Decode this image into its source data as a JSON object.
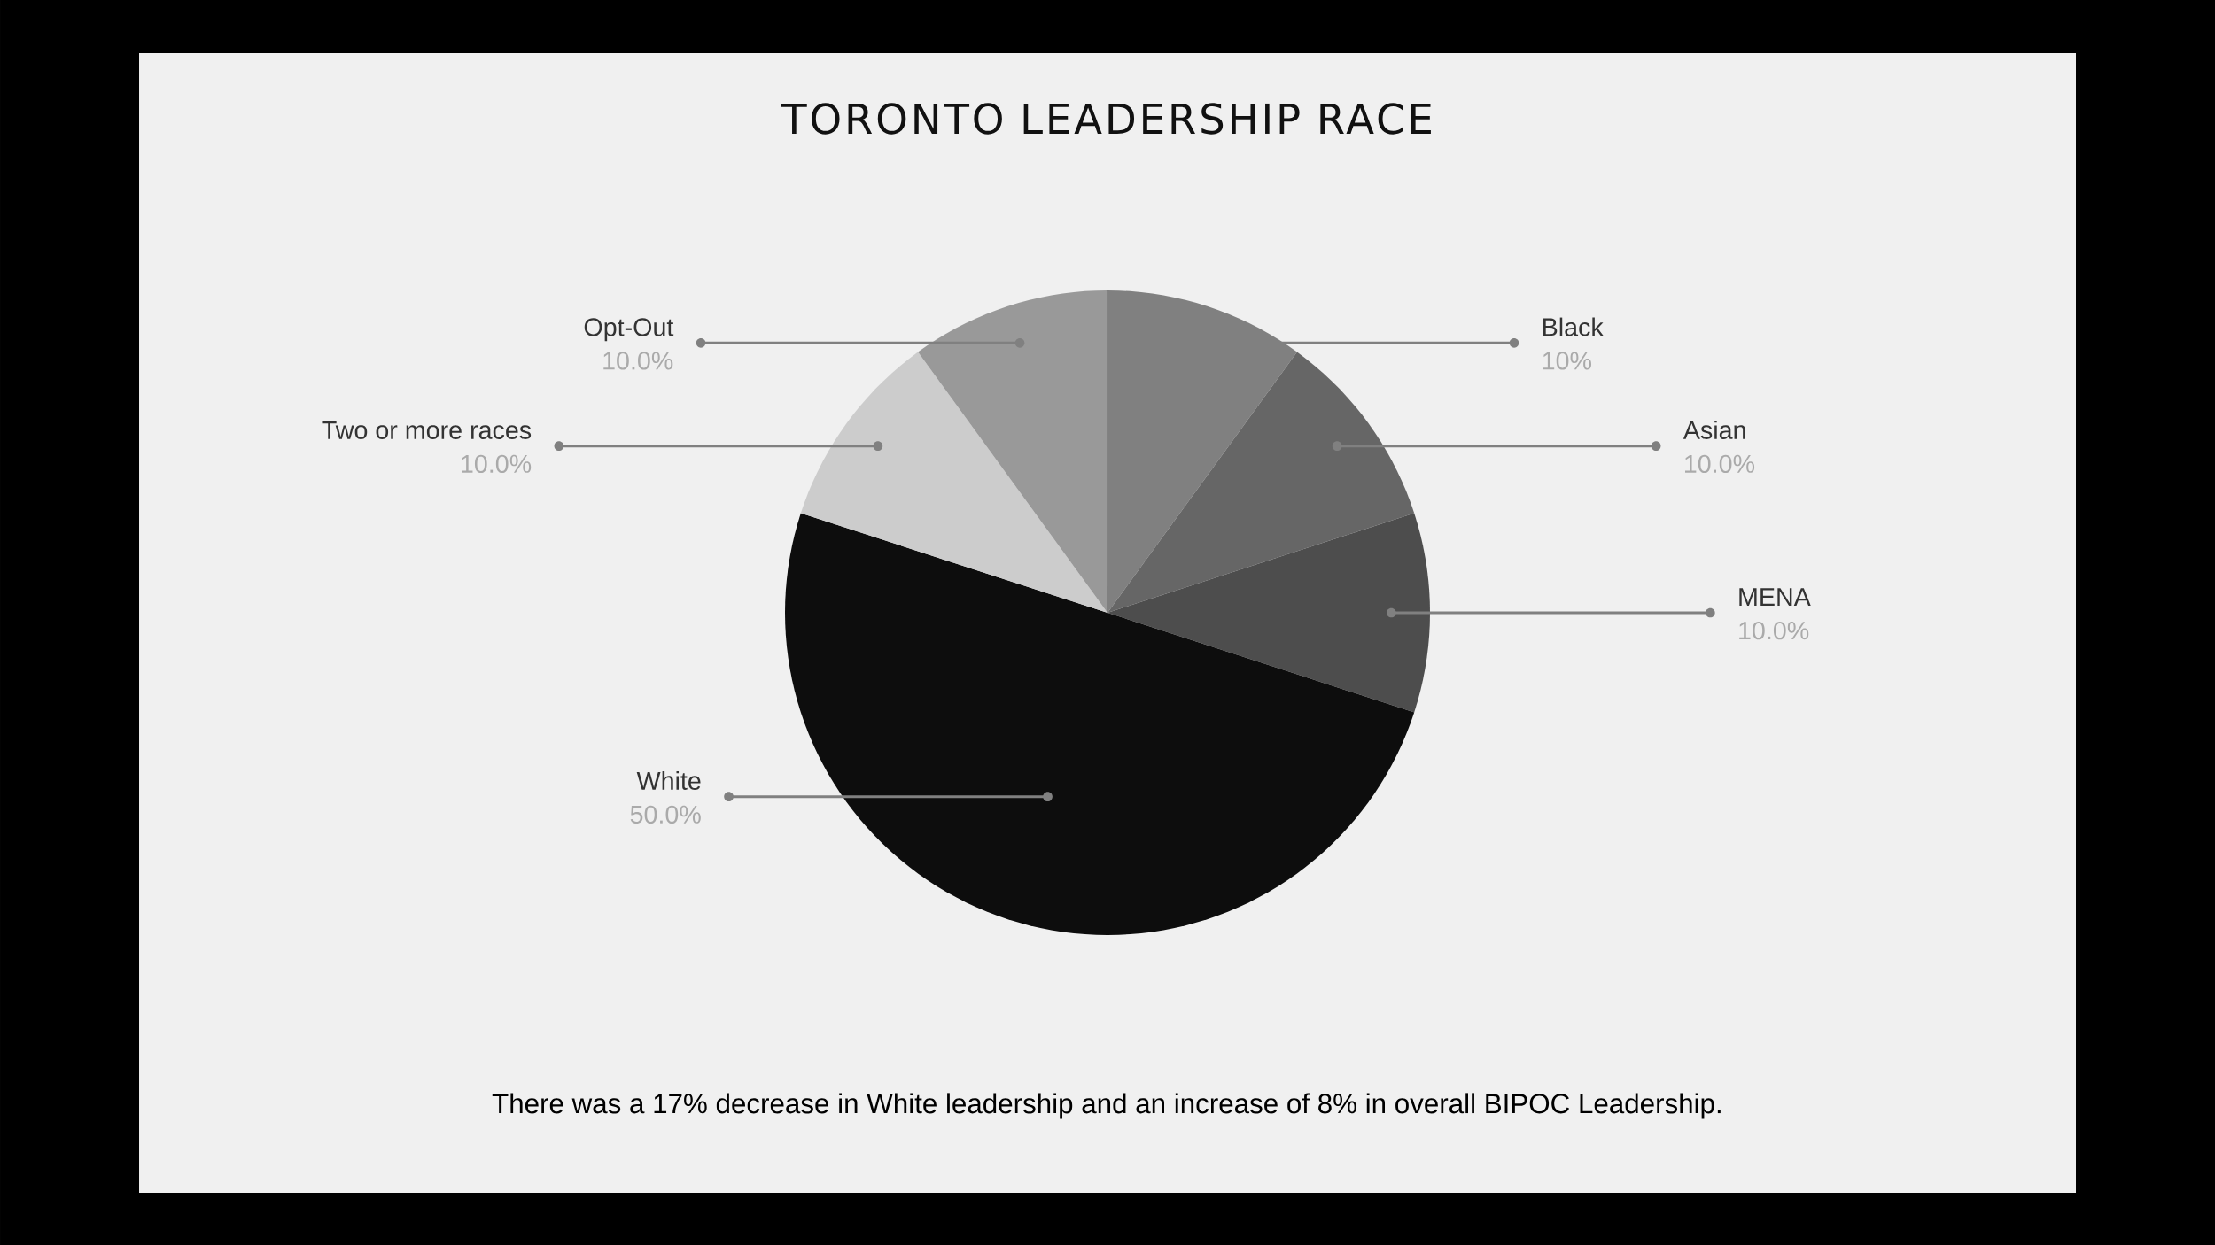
{
  "chart_data": {
    "type": "pie",
    "title": "TORONTO LEADERSHIP RACE",
    "categories": [
      "Black",
      "Asian",
      "MENA",
      "White",
      "Two or more races",
      "Opt-Out"
    ],
    "values": [
      10,
      10,
      10,
      50,
      10,
      10
    ],
    "value_labels": [
      "10%",
      "10.0%",
      "10.0%",
      "50.0%",
      "10.0%",
      "10.0%"
    ],
    "colors": [
      "#808080",
      "#666666",
      "#4d4d4d",
      "#0d0d0d",
      "#cccccc",
      "#999999"
    ],
    "annotations": [
      "There was a 17% decrease in White leadership and an increase of 8% in overall BIPOC Leadership."
    ]
  }
}
